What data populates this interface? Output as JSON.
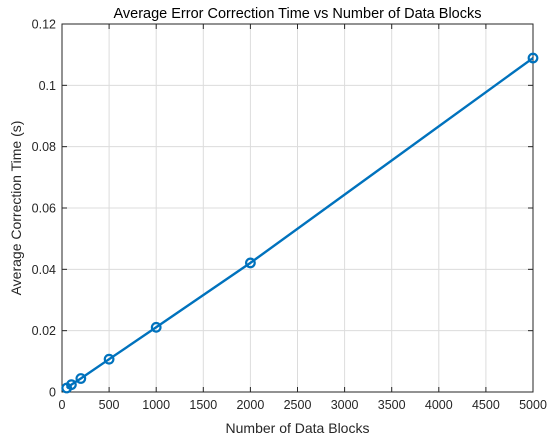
{
  "chart_data": {
    "type": "line",
    "title": "Average Error Correction Time vs Number of Data Blocks",
    "xlabel": "Number of Data Blocks",
    "ylabel": "Average Correction Time (s)",
    "xlim": [
      0,
      5000
    ],
    "ylim": [
      0,
      0.12
    ],
    "xticks": [
      0,
      500,
      1000,
      1500,
      2000,
      2500,
      3000,
      3500,
      4000,
      4500,
      5000
    ],
    "xtick_labels": [
      "0",
      "500",
      "1000",
      "1500",
      "2000",
      "2500",
      "3000",
      "3500",
      "4000",
      "4500",
      "5000"
    ],
    "yticks": [
      0,
      0.02,
      0.04,
      0.06,
      0.08,
      0.1,
      0.12
    ],
    "ytick_labels": [
      "0",
      "0.02",
      "0.04",
      "0.06",
      "0.08",
      "0.1",
      "0.12"
    ],
    "grid": true,
    "series": [
      {
        "color": "#0072BD",
        "marker": "circle",
        "x": [
          50,
          100,
          200,
          500,
          1000,
          2000,
          5000
        ],
        "y": [
          0.0013,
          0.0024,
          0.0044,
          0.0107,
          0.0211,
          0.0421,
          0.1089
        ]
      }
    ]
  }
}
